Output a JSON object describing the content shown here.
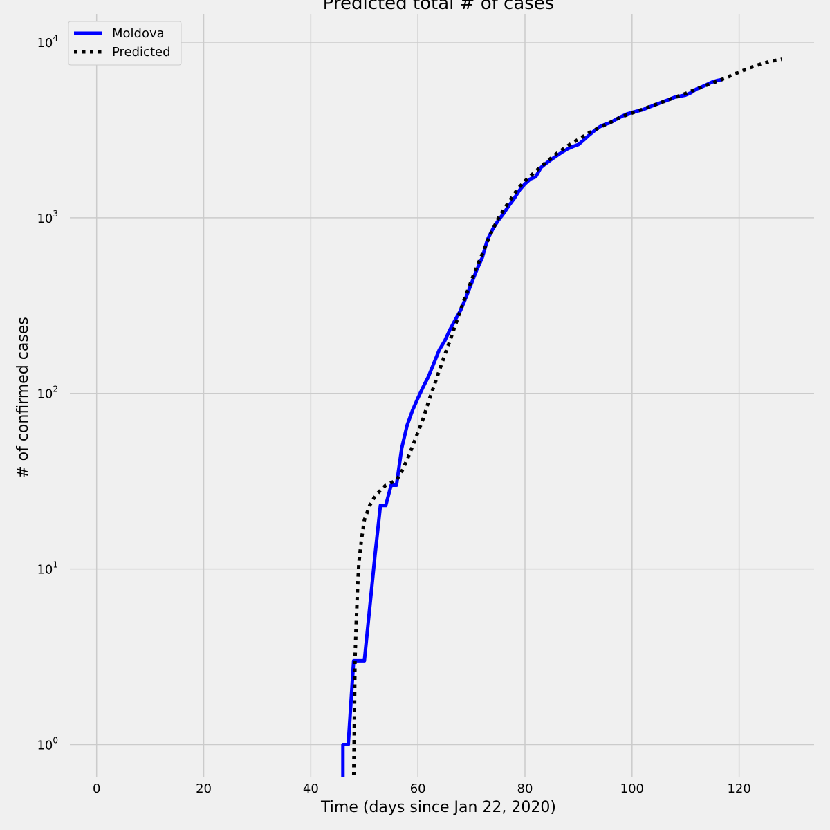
{
  "chart_data": {
    "type": "line",
    "title": "Predicted total # of cases",
    "xlabel": "Time (days since Jan 22, 2020)",
    "ylabel": "# of confirmed cases",
    "xlim": [
      -5,
      134
    ],
    "ylim": [
      0.65,
      14500
    ],
    "yscale": "log",
    "x_ticks": [
      0,
      20,
      40,
      60,
      80,
      100,
      120
    ],
    "x_tick_labels": [
      "0",
      "20",
      "40",
      "60",
      "80",
      "100",
      "120"
    ],
    "y_ticks": [
      1,
      10,
      100,
      1000,
      10000
    ],
    "y_tick_labels": [
      {
        "base": "10",
        "exp": "0"
      },
      {
        "base": "10",
        "exp": "1"
      },
      {
        "base": "10",
        "exp": "2"
      },
      {
        "base": "10",
        "exp": "3"
      },
      {
        "base": "10",
        "exp": "4"
      }
    ],
    "grid": true,
    "legend_position": "top-left",
    "series": [
      {
        "name": "Moldova",
        "color": "#0000ff",
        "style": "solid",
        "x": [
          46,
          47,
          48,
          49,
          50,
          51,
          52,
          53,
          54,
          55,
          56,
          57,
          58,
          59,
          60,
          61,
          62,
          63,
          64,
          65,
          66,
          67,
          68,
          69,
          70,
          71,
          72,
          73,
          74,
          75,
          76,
          77,
          78,
          79,
          80,
          81,
          82,
          83,
          84,
          85,
          86,
          87,
          88,
          89,
          90,
          91,
          92,
          93,
          94,
          95,
          96,
          97,
          98,
          99,
          100,
          101,
          102,
          103,
          104,
          105,
          106,
          107,
          108,
          109,
          110,
          111,
          112,
          113,
          114,
          115,
          116,
          117
        ],
        "y": [
          1,
          1,
          3,
          3,
          3,
          6,
          12,
          23,
          23,
          30,
          30,
          49,
          66,
          80,
          94,
          109,
          125,
          149,
          177,
          199,
          231,
          263,
          298,
          353,
          423,
          505,
          591,
          752,
          864,
          965,
          1056,
          1174,
          1289,
          1438,
          1560,
          1662,
          1712,
          1934,
          2049,
          2154,
          2264,
          2372,
          2472,
          2548,
          2614,
          2778,
          2960,
          3138,
          3304,
          3408,
          3481,
          3638,
          3771,
          3897,
          3980,
          4052,
          4121,
          4248,
          4363,
          4476,
          4605,
          4728,
          4867,
          4927,
          4995,
          5154,
          5406,
          5553,
          5745,
          5934,
          6060,
          6138
        ]
      },
      {
        "name": "Predicted",
        "color": "#000000",
        "style": "dotted",
        "x": [
          48,
          48.1,
          48.25,
          48.5,
          48.75,
          49,
          49.5,
          50,
          51,
          52,
          53,
          54,
          55,
          56,
          57,
          58,
          59,
          60,
          61,
          62,
          63,
          64,
          65,
          66,
          67,
          68,
          69,
          70,
          71,
          72,
          73,
          74,
          75,
          76,
          77,
          78,
          79,
          80,
          82,
          84,
          86,
          88,
          90,
          92,
          94,
          96,
          98,
          100,
          102,
          104,
          106,
          108,
          110,
          112,
          114,
          116,
          118,
          120,
          122,
          124,
          126,
          128
        ],
        "y": [
          0.6,
          1,
          3,
          5,
          8,
          11,
          15,
          19,
          23,
          26,
          28,
          30,
          31,
          32,
          36,
          42,
          50,
          60,
          72,
          90,
          110,
          135,
          165,
          200,
          245,
          300,
          365,
          440,
          525,
          620,
          735,
          860,
          990,
          1110,
          1230,
          1370,
          1500,
          1620,
          1840,
          2080,
          2330,
          2570,
          2800,
          3050,
          3280,
          3500,
          3750,
          3950,
          4150,
          4370,
          4600,
          4850,
          5100,
          5400,
          5700,
          6000,
          6350,
          6750,
          7150,
          7500,
          7800,
          8000
        ]
      }
    ]
  }
}
